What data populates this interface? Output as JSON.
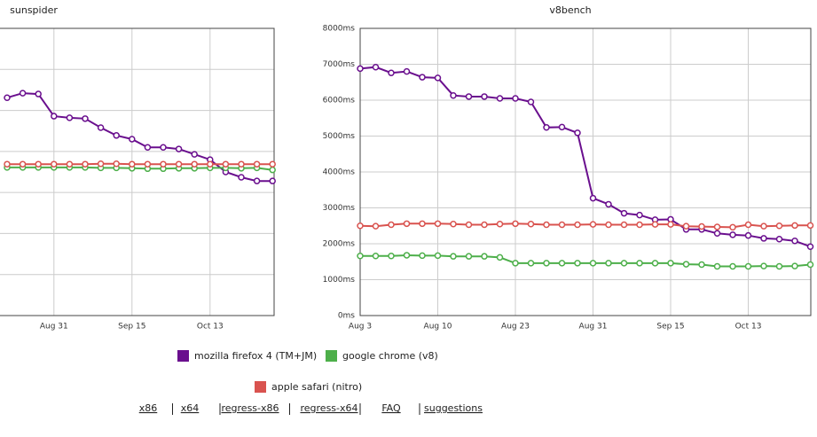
{
  "chart_data": [
    {
      "type": "line",
      "title": "sunspider",
      "categories": [
        null,
        null,
        null,
        "Aug 31",
        null,
        null,
        null,
        null,
        "Sep 15",
        null,
        null,
        null,
        null,
        "Oct 13",
        null,
        null,
        null,
        null
      ],
      "ylim": [
        0,
        7
      ],
      "yticks": [
        0,
        1,
        2,
        3,
        4,
        5,
        6,
        7
      ],
      "ytick_labels": false,
      "grid": true,
      "series": [
        {
          "color": "#6a0f8e",
          "values": [
            5.31,
            5.42,
            5.4,
            4.86,
            4.82,
            4.8,
            4.58,
            4.39,
            4.3,
            4.1,
            4.1,
            4.06,
            3.93,
            3.8,
            3.5,
            3.37,
            3.28,
            3.28
          ]
        },
        {
          "color": "#4daf4a",
          "values": [
            3.61,
            3.61,
            3.61,
            3.61,
            3.61,
            3.61,
            3.6,
            3.6,
            3.59,
            3.58,
            3.58,
            3.59,
            3.59,
            3.6,
            3.6,
            3.59,
            3.6,
            3.55
          ]
        },
        {
          "color": "#d9534f",
          "values": [
            3.69,
            3.69,
            3.69,
            3.69,
            3.69,
            3.69,
            3.7,
            3.7,
            3.69,
            3.69,
            3.69,
            3.69,
            3.69,
            3.69,
            3.69,
            3.69,
            3.69,
            3.69
          ]
        }
      ]
    },
    {
      "type": "line",
      "title": "v8bench",
      "categories": [
        "Aug 3",
        null,
        null,
        null,
        null,
        "Aug 10",
        null,
        null,
        null,
        null,
        "Aug 23",
        null,
        null,
        null,
        null,
        "Aug 31",
        null,
        null,
        null,
        null,
        "Sep 15",
        null,
        null,
        null,
        null,
        "Oct 13",
        null,
        null,
        null,
        null
      ],
      "ylim": [
        0,
        8000
      ],
      "yticks": [
        {
          "value": 0,
          "label": "0ms"
        },
        {
          "value": 1000,
          "label": "1000ms"
        },
        {
          "value": 2000,
          "label": "2000ms"
        },
        {
          "value": 3000,
          "label": "3000ms"
        },
        {
          "value": 4000,
          "label": "4000ms"
        },
        {
          "value": 5000,
          "label": "5000ms"
        },
        {
          "value": 6000,
          "label": "6000ms"
        },
        {
          "value": 7000,
          "label": "7000ms"
        },
        {
          "value": 8000,
          "label": "8000ms"
        }
      ],
      "ytick_labels": true,
      "grid": true,
      "series": [
        {
          "name": "mozilla firefox 4 (TM+JM)",
          "color": "#6a0f8e",
          "values": [
            6880,
            6920,
            6760,
            6800,
            6640,
            6620,
            6130,
            6100,
            6100,
            6050,
            6050,
            5950,
            5240,
            5250,
            5090,
            3270,
            3100,
            2850,
            2800,
            2670,
            2680,
            2400,
            2400,
            2290,
            2250,
            2230,
            2150,
            2130,
            2080,
            1920
          ]
        },
        {
          "name": "google chrome (v8)",
          "color": "#4daf4a",
          "values": [
            1660,
            1660,
            1660,
            1680,
            1670,
            1670,
            1650,
            1650,
            1650,
            1620,
            1460,
            1460,
            1460,
            1460,
            1460,
            1460,
            1460,
            1460,
            1460,
            1460,
            1460,
            1430,
            1420,
            1370,
            1370,
            1370,
            1380,
            1370,
            1380,
            1420
          ]
        },
        {
          "name": "apple safari (nitro)",
          "color": "#d9534f",
          "values": [
            2500,
            2490,
            2530,
            2560,
            2560,
            2560,
            2550,
            2530,
            2530,
            2550,
            2560,
            2550,
            2530,
            2530,
            2530,
            2540,
            2530,
            2530,
            2530,
            2540,
            2540,
            2490,
            2480,
            2470,
            2460,
            2530,
            2490,
            2500,
            2510,
            2510
          ]
        }
      ]
    }
  ],
  "links": [
    "x86",
    "x64",
    "regress-x86",
    "regress-x64",
    "FAQ",
    "suggestions"
  ]
}
